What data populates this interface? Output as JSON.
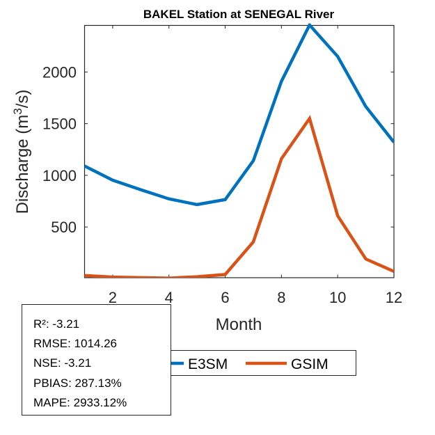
{
  "chart_data": {
    "type": "line",
    "title": "BAKEL  Station at  SENEGAL  River",
    "xlabel": "Month",
    "ylabel": "Discharge (m",
    "ylabel_sup": "3",
    "ylabel_tail": "/s)",
    "xlim": [
      1,
      12
    ],
    "ylim": [
      9,
      2451
    ],
    "xticks": [
      2,
      4,
      6,
      8,
      10,
      12
    ],
    "xtick_labels": [
      "2",
      "4",
      "6",
      "8",
      "10",
      "12"
    ],
    "yticks": [
      500,
      1000,
      1500,
      2000
    ],
    "ytick_labels": [
      "500",
      "1000",
      "1500",
      "2000"
    ],
    "grid": false,
    "x": [
      1,
      2,
      3,
      4,
      5,
      6,
      7,
      8,
      9,
      10,
      11,
      12
    ],
    "series": [
      {
        "name": "E3SM",
        "color": "#0072BD",
        "values": [
          1090,
          953,
          860,
          772,
          717,
          765,
          1141,
          1910,
          2455,
          2150,
          1665,
          1320
        ]
      },
      {
        "name": "GSIM",
        "color": "#D95319",
        "values": [
          30,
          15,
          10,
          5,
          18,
          40,
          355,
          1160,
          1550,
          608,
          190,
          70
        ]
      }
    ],
    "legend": {
      "placement": "bottom",
      "orientation": "horizontal",
      "entries": [
        "E3SM",
        "GSIM"
      ]
    },
    "annotation": {
      "lines": [
        "R²: -3.21",
        "RMSE: 1014.26",
        "NSE: -3.21",
        "PBIAS: 287.13%",
        "MAPE: 2933.12%"
      ]
    }
  }
}
